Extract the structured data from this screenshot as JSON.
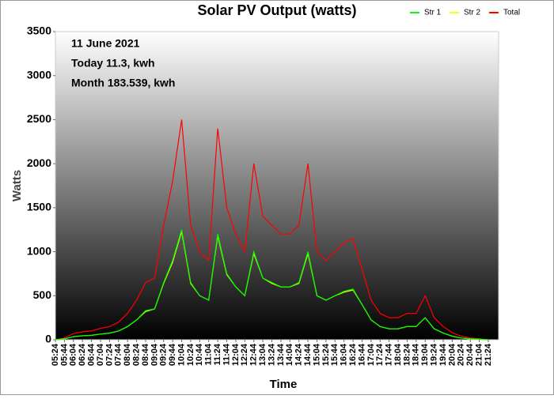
{
  "chart_data": {
    "type": "line",
    "title": "Solar PV Output (watts)",
    "annotations": [
      "11 June 2021",
      "Today 11.3, kwh",
      "Month 183.539, kwh"
    ],
    "y_label": "Watts",
    "x_label": "Time",
    "x": [
      "05:24",
      "05:44",
      "06:04",
      "06:24",
      "06:44",
      "07:04",
      "07:24",
      "07:44",
      "08:04",
      "08:24",
      "08:44",
      "09:04",
      "09:24",
      "09:44",
      "10:04",
      "10:24",
      "10:44",
      "11:04",
      "11:24",
      "11:44",
      "12:04",
      "12:24",
      "12:44",
      "13:04",
      "13:24",
      "13:44",
      "14:04",
      "14:24",
      "14:44",
      "15:04",
      "15:24",
      "15:44",
      "16:04",
      "16:24",
      "16:44",
      "17:04",
      "17:24",
      "17:44",
      "18:04",
      "18:24",
      "18:44",
      "19:04",
      "19:24",
      "19:44",
      "20:04",
      "20:24",
      "20:44",
      "21:04",
      "21:24"
    ],
    "series": [
      {
        "name": "Str 1",
        "color": "#00ff00",
        "values": [
          0,
          10,
          35,
          45,
          50,
          65,
          75,
          100,
          150,
          225,
          330,
          350,
          650,
          900,
          1250,
          650,
          500,
          450,
          1200,
          750,
          600,
          500,
          1000,
          700,
          650,
          600,
          600,
          650,
          1000,
          500,
          450,
          500,
          550,
          575,
          400,
          225,
          150,
          125,
          125,
          150,
          150,
          250,
          125,
          75,
          40,
          20,
          10,
          5,
          0
        ]
      },
      {
        "name": "Str 2",
        "color": "#ffff00",
        "values": [
          0,
          10,
          35,
          45,
          50,
          65,
          75,
          100,
          150,
          225,
          320,
          350,
          640,
          880,
          1230,
          640,
          500,
          450,
          1180,
          740,
          600,
          500,
          980,
          700,
          640,
          600,
          600,
          640,
          980,
          500,
          450,
          500,
          540,
          565,
          400,
          225,
          150,
          125,
          125,
          150,
          150,
          250,
          125,
          75,
          40,
          20,
          10,
          5,
          0
        ]
      },
      {
        "name": "Total",
        "color": "#ff0000",
        "values": [
          0,
          20,
          70,
          90,
          100,
          130,
          150,
          200,
          300,
          450,
          650,
          700,
          1300,
          1800,
          2500,
          1300,
          1000,
          900,
          2400,
          1500,
          1200,
          1000,
          2000,
          1400,
          1300,
          1200,
          1200,
          1300,
          2000,
          1000,
          900,
          1000,
          1100,
          1150,
          800,
          450,
          300,
          250,
          250,
          300,
          300,
          500,
          250,
          150,
          80,
          40,
          20,
          10,
          0
        ]
      }
    ],
    "ylim": [
      0,
      3500
    ],
    "yticks": [
      0,
      500,
      1000,
      1500,
      2000,
      2500,
      3000,
      3500
    ]
  }
}
